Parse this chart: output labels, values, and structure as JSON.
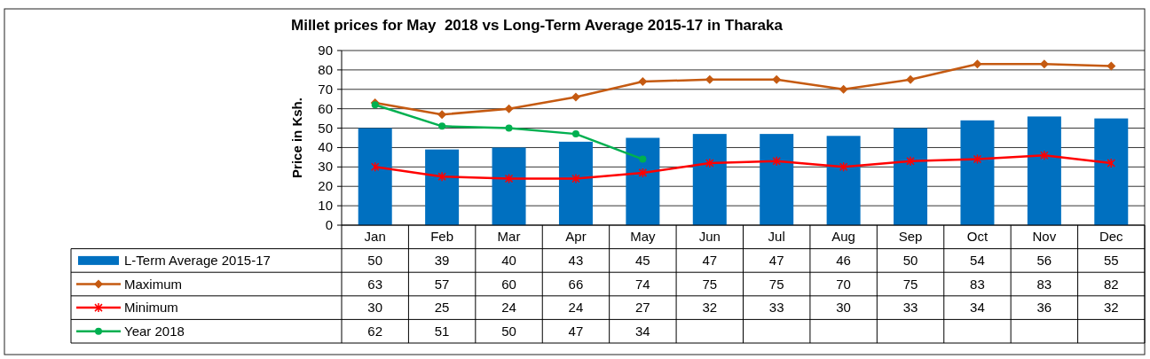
{
  "chart_data": {
    "type": "bar",
    "title": "Millet prices for May  2018 vs Long-Term Average 2015-17 in Tharaka",
    "ylabel": "Price in Ksh.",
    "categories": [
      "Jan",
      "Feb",
      "Mar",
      "Apr",
      "May",
      "Jun",
      "Jul",
      "Aug",
      "Sep",
      "Oct",
      "Nov",
      "Dec"
    ],
    "series": [
      {
        "name": "L-Term Average 2015-17",
        "color": "#0070c0",
        "values": [
          50,
          39,
          40,
          43,
          45,
          47,
          47,
          46,
          50,
          54,
          56,
          55
        ]
      },
      {
        "name": "Maximum",
        "type": "line",
        "color": "#c55a11",
        "marker": "diamond",
        "values": [
          63,
          57,
          60,
          66,
          74,
          75,
          75,
          70,
          75,
          83,
          83,
          82
        ]
      },
      {
        "name": "Minimum",
        "type": "line",
        "color": "#ff0000",
        "marker": "cross",
        "values": [
          30,
          25,
          24,
          24,
          27,
          32,
          33,
          30,
          33,
          34,
          36,
          32
        ]
      },
      {
        "name": "Year 2018",
        "type": "line",
        "color": "#00b050",
        "marker": "circle",
        "values": [
          62,
          51,
          50,
          47,
          34,
          null,
          null,
          null,
          null,
          null,
          null,
          null
        ]
      }
    ],
    "ylim": [
      0,
      90
    ],
    "yticks": [
      0,
      10,
      20,
      30,
      40,
      50,
      60,
      70,
      80,
      90
    ],
    "grid": "y",
    "legend": "bottom",
    "data_labels": true
  }
}
